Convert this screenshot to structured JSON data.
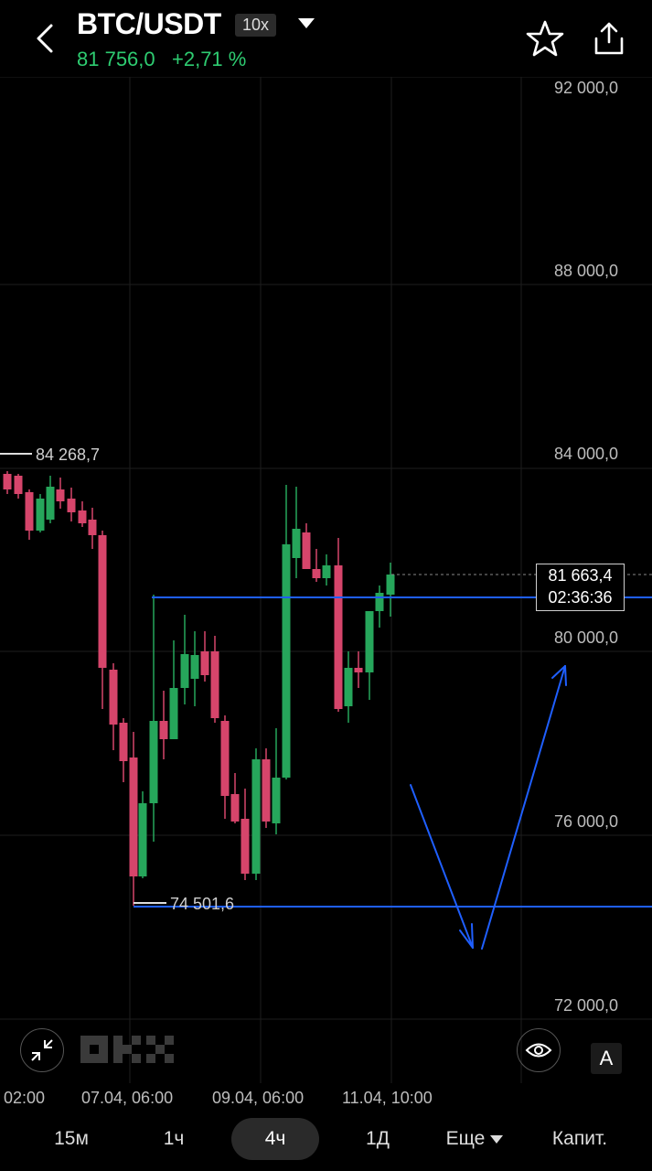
{
  "header": {
    "pair": "BTC/USDT",
    "leverage": "10x",
    "last_price": "81 756,0",
    "change": "+2,71 %",
    "icons": [
      "back-arrow-icon",
      "dropdown-caret-icon",
      "star-icon",
      "share-icon"
    ]
  },
  "chart": {
    "y_labels": [
      "92 000,0",
      "88 000,0",
      "84 000,0",
      "80 000,0",
      "76 000,0",
      "72 000,0"
    ],
    "x_labels": [
      "02:00",
      "07.04, 06:00",
      "09.04, 06:00",
      "11.04, 10:00"
    ],
    "high_label": "84 268,7",
    "low_label": "74 501,6",
    "current_price": "81 663,4",
    "countdown": "02:36:36",
    "colors": {
      "up": "#26a65b",
      "down": "#d6456b",
      "drawing": "#1f5fff"
    }
  },
  "toolbar": {
    "logo": "OKX",
    "auto_label": "A",
    "icons": [
      "collapse-icon",
      "eye-icon"
    ]
  },
  "timeframes": {
    "items": [
      "15м",
      "1ч",
      "4ч",
      "1Д"
    ],
    "active": "4ч",
    "more_label": "Еще",
    "capital_label": "Капит."
  }
}
